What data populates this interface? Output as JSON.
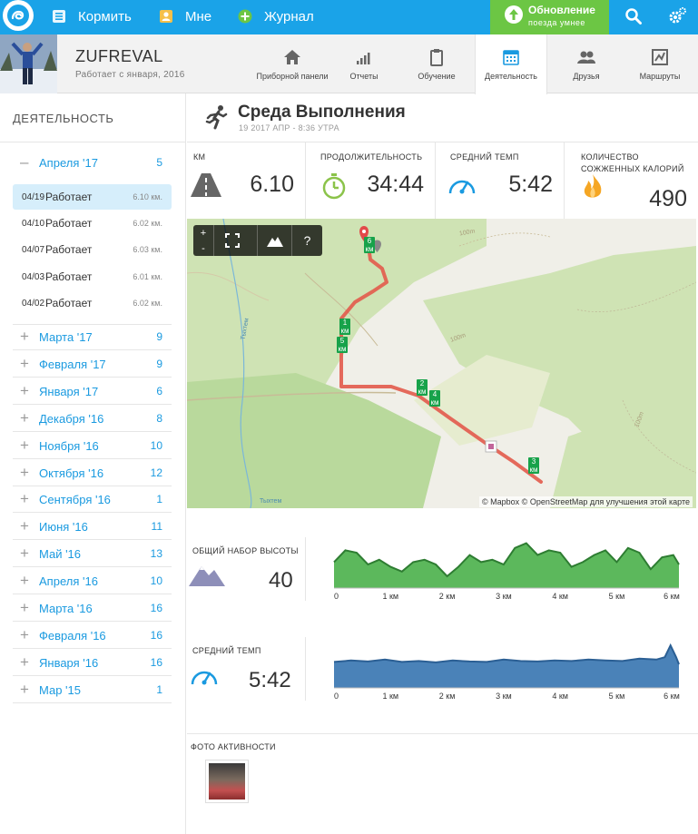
{
  "topbar": {
    "nav": [
      {
        "label": "Кормить",
        "icon": "feed-icon"
      },
      {
        "label": "Мне",
        "icon": "person-icon"
      },
      {
        "label": "Журнал",
        "icon": "plus-circle-icon"
      }
    ],
    "update": {
      "title": "Обновление",
      "subtitle": "поезда умнее"
    },
    "accent": "#1aa3e8",
    "update_color": "#6cc644"
  },
  "profile": {
    "username": "ZUFREVAL",
    "since": "Работает с января, 2016",
    "tabs": [
      {
        "label": "Приборной панели",
        "icon": "home-icon"
      },
      {
        "label": "Отчеты",
        "icon": "bars-icon"
      },
      {
        "label": "Обучение",
        "icon": "clipboard-icon"
      },
      {
        "label": "Деятельность",
        "icon": "calendar-icon",
        "active": true
      },
      {
        "label": "Друзья",
        "icon": "friends-icon"
      },
      {
        "label": "Маршруты",
        "icon": "route-icon"
      }
    ]
  },
  "sidebar": {
    "title": "ДЕЯТЕЛЬНОСТЬ",
    "expanded": {
      "sign": "–",
      "label": "Апреля '17",
      "count": "5"
    },
    "runs": [
      {
        "date": "04/19",
        "name": "Работает",
        "dist": "6.10 км."
      },
      {
        "date": "04/10",
        "name": "Работает",
        "dist": "6.02 км."
      },
      {
        "date": "04/07",
        "name": "Работает",
        "dist": "6.03 км."
      },
      {
        "date": "04/03",
        "name": "Работает",
        "dist": "6.01 км."
      },
      {
        "date": "04/02",
        "name": "Работает",
        "dist": "6.02 км."
      }
    ],
    "months": [
      {
        "sign": "+",
        "label": "Марта '17",
        "count": "9"
      },
      {
        "sign": "+",
        "label": "Февраля '17",
        "count": "9"
      },
      {
        "sign": "+",
        "label": "Января '17",
        "count": "6"
      },
      {
        "sign": "+",
        "label": "Декабря '16",
        "count": "8"
      },
      {
        "sign": "+",
        "label": "Ноября '16",
        "count": "10"
      },
      {
        "sign": "+",
        "label": "Октября '16",
        "count": "12"
      },
      {
        "sign": "+",
        "label": "Сентября '16",
        "count": "1"
      },
      {
        "sign": "+",
        "label": "Июня '16",
        "count": "11"
      },
      {
        "sign": "+",
        "label": "Май '16",
        "count": "13"
      },
      {
        "sign": "+",
        "label": "Апреля '16",
        "count": "10"
      },
      {
        "sign": "+",
        "label": "Марта '16",
        "count": "16"
      },
      {
        "sign": "+",
        "label": "Февраля '16",
        "count": "16"
      },
      {
        "sign": "+",
        "label": "Января '16",
        "count": "16"
      },
      {
        "sign": "+",
        "label": "Мар '15",
        "count": "1"
      }
    ]
  },
  "activity": {
    "title": "Среда Выполнения",
    "date": "19 2017 АПР - 8:36 УТРА",
    "stats": [
      {
        "label": "КМ",
        "value": "6.10",
        "icon": "road-icon"
      },
      {
        "label": "ПРОДОЛЖИТЕЛЬНОСТЬ",
        "value": "34:44",
        "icon": "stopwatch-icon"
      },
      {
        "label": "СРЕДНИЙ ТЕМП",
        "value": "5:42",
        "icon": "speedometer-icon"
      },
      {
        "label": "КОЛИЧЕСТВО СОЖЖЕННЫХ КАЛОРИЙ",
        "value": "490",
        "icon": "flame-icon"
      }
    ]
  },
  "map": {
    "attribution": "© Mapbox © OpenStreetMap для улучшения этой карте",
    "zoom_in": "+",
    "zoom_out": "-",
    "help": "?",
    "labels": [
      "Тыхтем",
      "Тыхтем"
    ],
    "markers": [
      "1 км",
      "2 км",
      "3 км",
      "4 км",
      "5 км",
      "6 км"
    ],
    "contour_labels": [
      "100m",
      "100m",
      "100m"
    ]
  },
  "elevation": {
    "label": "ОБЩИЙ НАБОР ВЫСОТЫ",
    "value": "40",
    "color": "#4caf50"
  },
  "pace_chart": {
    "label": "СРЕДНИЙ ТЕМП",
    "value": "5:42",
    "color": "#4a82b8"
  },
  "chart_data": [
    {
      "type": "area",
      "x_ticks": [
        "0",
        "1 км",
        "2 км",
        "3 км",
        "4 км",
        "5 км",
        "6 км"
      ],
      "x": [
        0,
        0.2,
        0.4,
        0.6,
        0.8,
        1.0,
        1.2,
        1.4,
        1.6,
        1.8,
        2.0,
        2.2,
        2.4,
        2.6,
        2.8,
        3.0,
        3.2,
        3.4,
        3.6,
        3.8,
        4.0,
        4.2,
        4.4,
        4.6,
        4.8,
        5.0,
        5.2,
        5.4,
        5.6,
        5.8,
        6.0,
        6.1
      ],
      "values": [
        0.55,
        0.8,
        0.75,
        0.5,
        0.6,
        0.45,
        0.35,
        0.55,
        0.6,
        0.5,
        0.25,
        0.45,
        0.7,
        0.55,
        0.6,
        0.5,
        0.85,
        0.95,
        0.7,
        0.8,
        0.75,
        0.45,
        0.55,
        0.7,
        0.8,
        0.55,
        0.85,
        0.75,
        0.4,
        0.65,
        0.7,
        0.5
      ]
    },
    {
      "type": "area",
      "x_ticks": [
        "0",
        "1 км",
        "2 км",
        "3 км",
        "4 км",
        "5 км",
        "6 км"
      ],
      "x": [
        0,
        0.3,
        0.6,
        0.9,
        1.2,
        1.5,
        1.8,
        2.1,
        2.4,
        2.7,
        3.0,
        3.3,
        3.6,
        3.9,
        4.2,
        4.5,
        4.8,
        5.1,
        5.4,
        5.7,
        5.85,
        5.95,
        6.05,
        6.1
      ],
      "values": [
        0.55,
        0.58,
        0.56,
        0.6,
        0.55,
        0.57,
        0.54,
        0.58,
        0.56,
        0.55,
        0.6,
        0.57,
        0.56,
        0.58,
        0.57,
        0.6,
        0.58,
        0.57,
        0.62,
        0.6,
        0.65,
        0.9,
        0.65,
        0.5
      ]
    }
  ]
}
